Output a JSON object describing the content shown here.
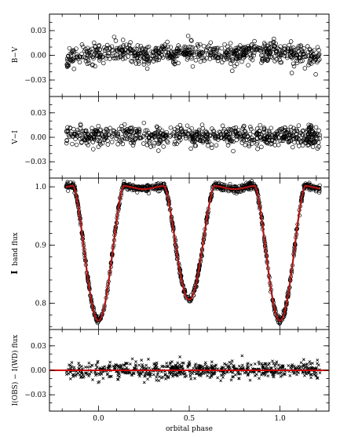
{
  "chart_data": [
    {
      "type": "scatter",
      "panel": "B-V",
      "ylabel": "B−V",
      "ylim": [
        -0.05,
        0.05
      ],
      "yticks": [
        -0.03,
        0.0,
        0.03
      ],
      "ytick_labels": [
        "−0.03",
        "0.00",
        "0.03"
      ],
      "xlim": [
        -0.27,
        1.27
      ],
      "marker": "open-circle",
      "scatter_sigma": 0.006,
      "series": [
        {
          "values": [
            {
              "phase": -0.15,
              "value": -0.004
            },
            {
              "phase": 0.0,
              "value": 0.003
            },
            {
              "phase": 0.1,
              "value": 0.006
            },
            {
              "phase": 0.25,
              "value": 0.001
            },
            {
              "phase": 0.4,
              "value": 0.003
            },
            {
              "phase": 0.5,
              "value": 0.004
            },
            {
              "phase": 0.6,
              "value": 0.002
            },
            {
              "phase": 0.75,
              "value": 0.002
            },
            {
              "phase": 0.9,
              "value": 0.003
            },
            {
              "phase": 1.0,
              "value": 0.004
            },
            {
              "phase": 1.1,
              "value": 0.002
            },
            {
              "phase": 1.22,
              "value": -0.004
            }
          ]
        }
      ]
    },
    {
      "type": "scatter",
      "panel": "V-I",
      "ylabel": "V−I",
      "ylim": [
        -0.05,
        0.05
      ],
      "yticks": [
        -0.03,
        0.0,
        0.03
      ],
      "ytick_labels": [
        "−0.03",
        "0.00",
        "0.03"
      ],
      "xlim": [
        -0.27,
        1.27
      ],
      "marker": "open-circle",
      "scatter_sigma": 0.006,
      "series": [
        {
          "values": [
            {
              "phase": -0.15,
              "value": 0.002
            },
            {
              "phase": 0.0,
              "value": 0.001
            },
            {
              "phase": 0.25,
              "value": 0.002
            },
            {
              "phase": 0.5,
              "value": 0.001
            },
            {
              "phase": 0.75,
              "value": 0.002
            },
            {
              "phase": 1.0,
              "value": 0.001
            },
            {
              "phase": 1.22,
              "value": 0.002
            }
          ]
        }
      ]
    },
    {
      "type": "scatter",
      "panel": "I band flux",
      "ylabel_prefix": "I",
      "ylabel": "band flux",
      "ylim": [
        0.755,
        1.015
      ],
      "yticks": [
        0.8,
        0.9,
        1.0
      ],
      "ytick_labels": [
        "0.8",
        "0.9",
        "1.0"
      ],
      "xlim": [
        -0.27,
        1.27
      ],
      "marker": "open-circle",
      "model_color": "#b01515",
      "model": {
        "name": "",
        "max_flux": 0.998,
        "primary_min": {
          "phase": 0.0,
          "flux": 0.772
        },
        "secondary_min": {
          "phase": 0.5,
          "flux": 0.808
        },
        "eclipse_half_width": 0.14,
        "x": [
          -0.18,
          -0.15,
          -0.1,
          -0.05,
          0.0,
          0.05,
          0.1,
          0.15,
          0.2,
          0.25,
          0.3,
          0.35,
          0.4,
          0.45,
          0.5,
          0.55,
          0.6,
          0.65,
          0.7,
          0.75,
          0.8,
          0.85,
          0.9,
          0.95,
          1.0,
          1.05,
          1.1,
          1.15,
          1.2,
          1.22
        ]
      },
      "scatter_sigma": 0.003
    },
    {
      "type": "scatter",
      "panel": "residuals",
      "ylabel": "I(OBS) − I(WD) flux",
      "ylim": [
        -0.05,
        0.05
      ],
      "yticks": [
        -0.03,
        0.0,
        0.03
      ],
      "ytick_labels": [
        "−0.03",
        "0.00",
        "0.03"
      ],
      "xlim": [
        -0.27,
        1.27
      ],
      "marker": "cross",
      "zero_line_color": "#cc0000",
      "scatter_sigma": 0.005,
      "series": [
        {
          "values": [
            {
              "phase": -0.15,
              "value": 0.0
            },
            {
              "phase": 0.5,
              "value": 0.0
            },
            {
              "phase": 1.22,
              "value": 0.0
            }
          ]
        }
      ]
    }
  ],
  "xaxis": {
    "xlabel": "orbital phase",
    "xticks": [
      0.0,
      0.5,
      1.0
    ],
    "xtick_labels": [
      "0.0",
      "0.5",
      "1.0"
    ],
    "data_range": [
      -0.18,
      1.22
    ]
  }
}
